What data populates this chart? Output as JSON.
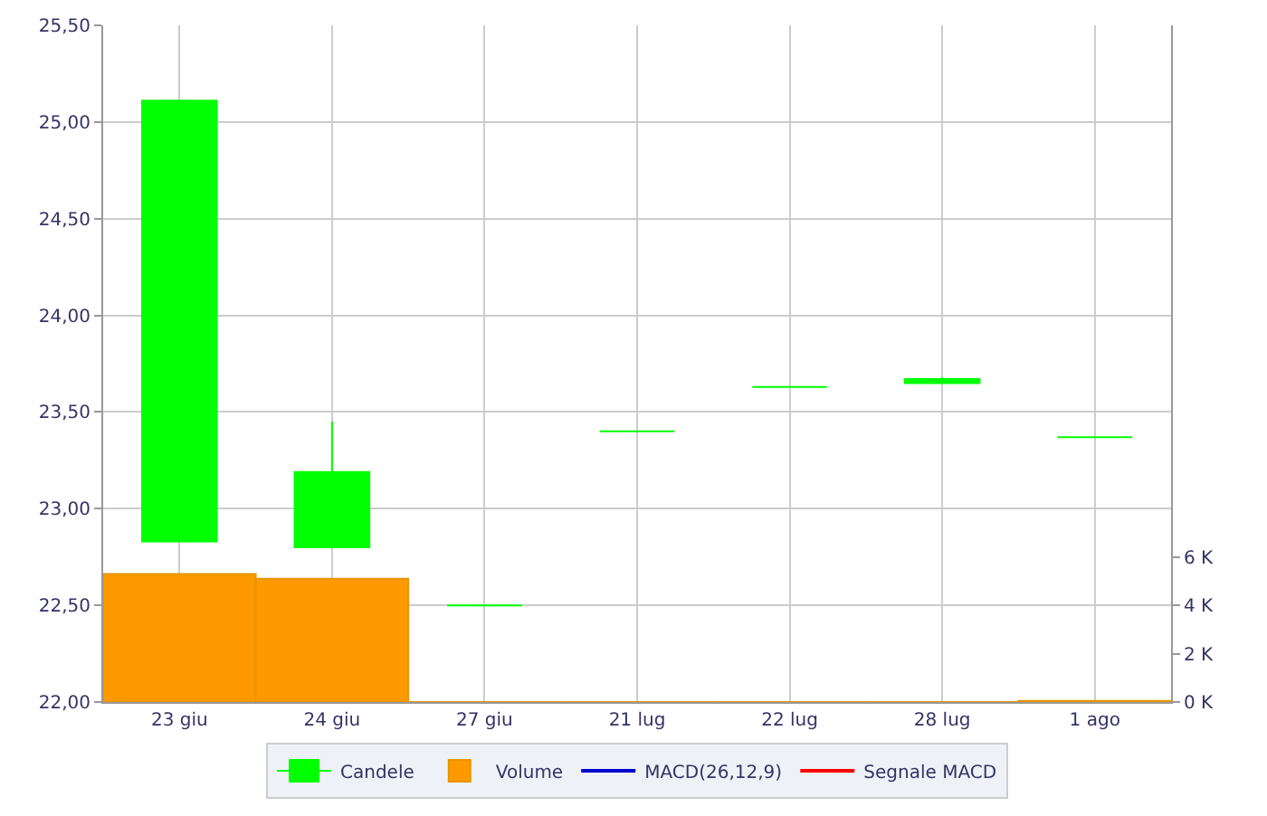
{
  "chart_data": {
    "type": "candlestick",
    "categories": [
      "23 giu",
      "24 giu",
      "27 giu",
      "21 lug",
      "22 lug",
      "28 lug",
      "1 ago"
    ],
    "series": [
      {
        "name": "Candele",
        "color": "#00ff00",
        "ohlc": [
          [
            22.83,
            25.11,
            22.83,
            25.11
          ],
          [
            22.8,
            23.45,
            22.8,
            23.19
          ],
          [
            22.5,
            22.5,
            22.5,
            22.5
          ],
          [
            23.4,
            23.4,
            23.4,
            23.4
          ],
          [
            23.63,
            23.63,
            23.63,
            23.63
          ],
          [
            23.65,
            23.68,
            23.65,
            23.67
          ],
          [
            23.37,
            23.37,
            23.37,
            23.37
          ]
        ]
      },
      {
        "name": "Volume",
        "type": "bar",
        "axis": "y2",
        "color": "#ff9900",
        "values": [
          5.3,
          5.1,
          0,
          0,
          0,
          0,
          0.05
        ]
      },
      {
        "name": "MACD(26,12,9)",
        "type": "line",
        "color": "#0000cc",
        "values": [
          null,
          null,
          null,
          null,
          null,
          null,
          null
        ]
      },
      {
        "name": "Segnale MACD",
        "type": "line",
        "color": "#ff0000",
        "values": [
          null,
          null,
          null,
          null,
          null,
          null,
          null
        ]
      }
    ],
    "ylim": [
      22,
      25.5
    ],
    "yticks": [
      {
        "value": 22,
        "label": "22,00"
      },
      {
        "value": 22.5,
        "label": "22,50"
      },
      {
        "value": 23,
        "label": "23,00"
      },
      {
        "value": 23.5,
        "label": "23,50"
      },
      {
        "value": 24,
        "label": "24,00"
      },
      {
        "value": 24.5,
        "label": "24,50"
      },
      {
        "value": 25,
        "label": "25,00"
      },
      {
        "value": 25.5,
        "label": "25,50"
      }
    ],
    "y2lim": [
      0,
      28
    ],
    "y2ticks": [
      {
        "value": 0,
        "label": "0 K"
      },
      {
        "value": 2,
        "label": "2 K"
      },
      {
        "value": 4,
        "label": "4 K"
      },
      {
        "value": 6,
        "label": "6 K"
      }
    ],
    "grid": true,
    "legend": "bottom"
  }
}
